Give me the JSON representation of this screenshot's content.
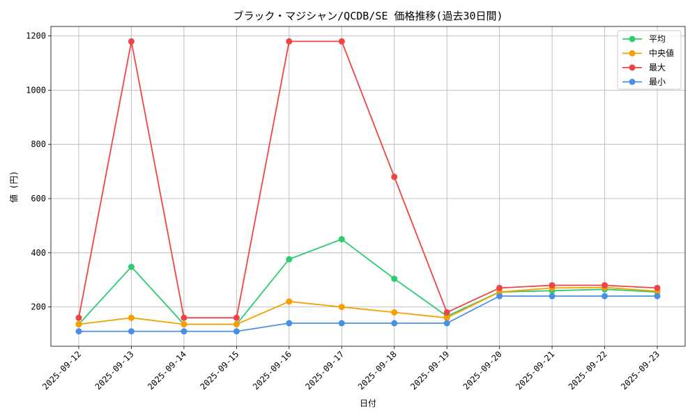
{
  "chart_data": {
    "type": "line",
    "title": "ブラック・マジシャン/QCDB/SE 価格推移(過去30日間)",
    "xlabel": "日付",
    "ylabel": "値 (円)",
    "categories": [
      "2025-09-12",
      "2025-09-13",
      "2025-09-14",
      "2025-09-15",
      "2025-09-16",
      "2025-09-17",
      "2025-09-18",
      "2025-09-19",
      "2025-09-20",
      "2025-09-21",
      "2025-09-22",
      "2025-09-23"
    ],
    "ylim": [
      55,
      1235
    ],
    "yticks": [
      200,
      400,
      600,
      800,
      1000,
      1200
    ],
    "grid": true,
    "legend_position": "top-right",
    "series": [
      {
        "name": "平均",
        "color": "#2ecc71",
        "values": [
          136,
          348,
          136,
          136,
          376,
          450,
          304,
          166,
          255,
          260,
          265,
          255
        ]
      },
      {
        "name": "中央値",
        "color": "#f5a000",
        "values": [
          136,
          160,
          136,
          136,
          220,
          200,
          180,
          160,
          255,
          270,
          272,
          258
        ]
      },
      {
        "name": "最大",
        "color": "#ef4444",
        "values": [
          160,
          1180,
          160,
          160,
          1180,
          1180,
          680,
          180,
          270,
          280,
          280,
          270
        ]
      },
      {
        "name": "最小",
        "color": "#4a90e2",
        "values": [
          110,
          110,
          110,
          110,
          140,
          140,
          140,
          140,
          240,
          240,
          240,
          240
        ]
      }
    ]
  }
}
